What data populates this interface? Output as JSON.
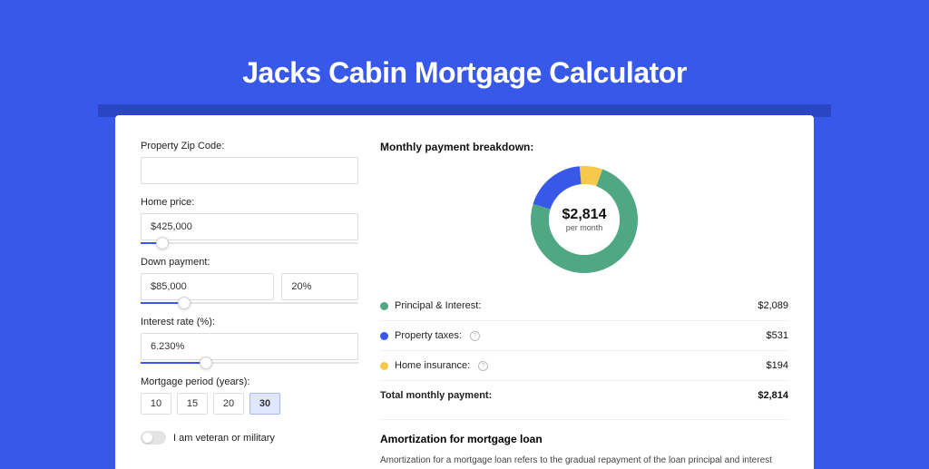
{
  "page": {
    "title": "Jacks Cabin Mortgage Calculator",
    "bg_color": "#3858e9"
  },
  "form": {
    "zip": {
      "label": "Property Zip Code:",
      "value": ""
    },
    "home_price": {
      "label": "Home price:",
      "value": "$425,000",
      "slider_pct": 10
    },
    "down_payment": {
      "label": "Down payment:",
      "amount": "$85,000",
      "percent": "20%",
      "slider_pct": 20
    },
    "interest": {
      "label": "Interest rate (%):",
      "value": "6.230%",
      "slider_pct": 30
    },
    "period": {
      "label": "Mortgage period (years):",
      "options": [
        "10",
        "15",
        "20",
        "30"
      ],
      "active_index": 3
    },
    "veteran": {
      "label": "I am veteran or military",
      "checked": false
    }
  },
  "breakdown": {
    "title": "Monthly payment breakdown:",
    "center_amount": "$2,814",
    "center_sub": "per month",
    "donut": {
      "series": [
        {
          "label": "Principal & Interest:",
          "value": "$2,089",
          "color": "#4fa783",
          "angle": 267,
          "info": false
        },
        {
          "label": "Property taxes:",
          "value": "$531",
          "color": "#3858e9",
          "angle": 68,
          "info": true
        },
        {
          "label": "Home insurance:",
          "value": "$194",
          "color": "#f5c94b",
          "angle": 25,
          "info": true
        }
      ]
    },
    "total": {
      "label": "Total monthly payment:",
      "value": "$2,814"
    }
  },
  "amortization": {
    "title": "Amortization for mortgage loan",
    "body": "Amortization for a mortgage loan refers to the gradual repayment of the loan principal and interest over a specified"
  }
}
